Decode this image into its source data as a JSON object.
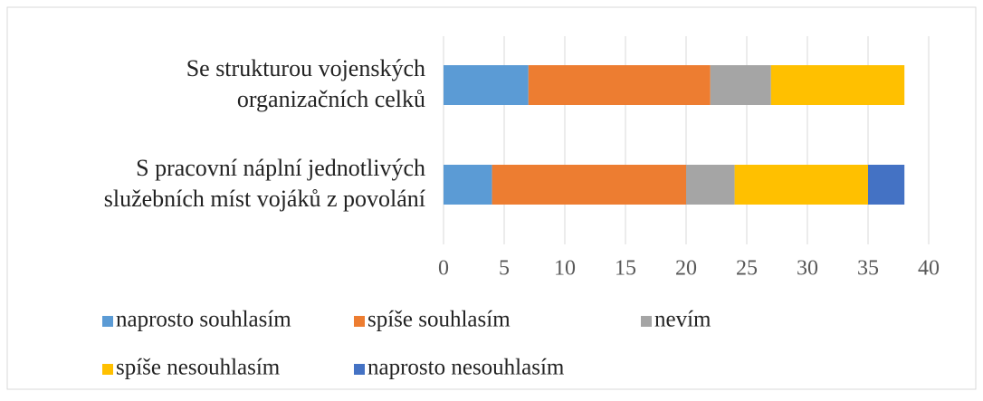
{
  "chart_data": {
    "type": "stacked-bar-horizontal",
    "categories": [
      [
        "Se strukturou vojenských",
        "organizačních celků"
      ],
      [
        "S pracovní náplní jednotlivých",
        "služebních míst vojáků z povolání"
      ]
    ],
    "series": [
      {
        "name": "naprosto souhlasím",
        "color": "#5b9bd5",
        "values": [
          7,
          4
        ]
      },
      {
        "name": "spíše souhlasím",
        "color": "#ed7d31",
        "values": [
          15,
          16
        ]
      },
      {
        "name": "nevím",
        "color": "#a5a5a5",
        "values": [
          5,
          4
        ]
      },
      {
        "name": "spíše nesouhlasím",
        "color": "#ffc000",
        "values": [
          11,
          11
        ]
      },
      {
        "name": "naprosto nesouhlasím",
        "color": "#4472c4",
        "values": [
          0,
          3
        ]
      }
    ],
    "xlim": [
      0,
      40
    ],
    "xticks": [
      0,
      5,
      10,
      15,
      20,
      25,
      30,
      35,
      40
    ],
    "grid": true
  }
}
